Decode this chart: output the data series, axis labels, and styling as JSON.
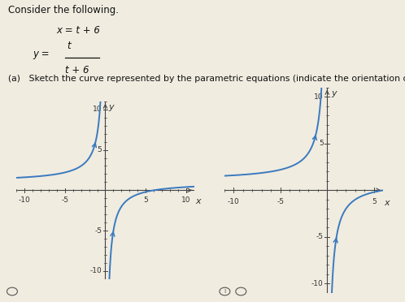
{
  "title_text": "Consider the following.",
  "eq1": "x = t + 6",
  "eq2_lhs": "y = ",
  "eq2_num": "t",
  "eq2_den": "t + 6",
  "part_label": "(a)   Sketch the curve represented by the parametric equations (indicate the orientation of the curve).",
  "xlabel": "x",
  "ylabel": "y",
  "curve_color": "#3a7abf",
  "axis_color": "#444444",
  "bg_color": "#f0ece0",
  "fig_width": 4.98,
  "fig_height": 3.72,
  "dpi": 100
}
